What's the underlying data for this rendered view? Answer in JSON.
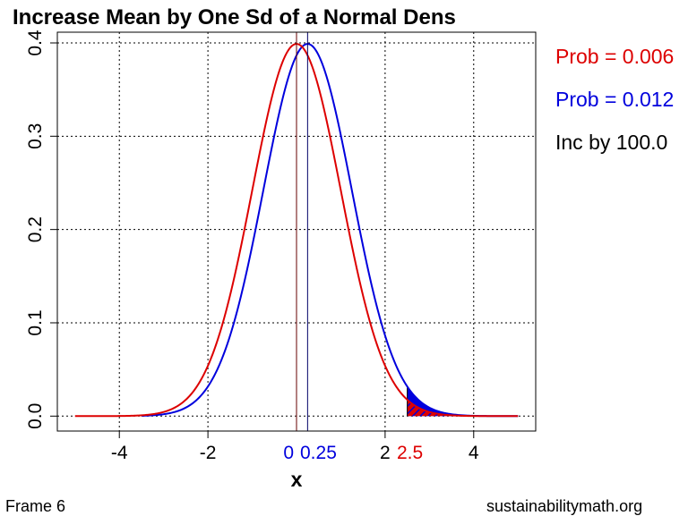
{
  "chart_data": {
    "type": "line",
    "title": "Increase Mean by One Sd of a Normal Dens",
    "xlabel": "x",
    "ylabel": "",
    "xlim": [
      -5.4,
      5.4
    ],
    "ylim": [
      -0.016,
      0.4115
    ],
    "x_ticks": [
      "-4",
      "-2",
      "2",
      "4"
    ],
    "x_tick_values": [
      -4,
      -2,
      2,
      4
    ],
    "y_ticks": [
      "0.0",
      "0.1",
      "0.2",
      "0.3",
      "0.4"
    ],
    "y_tick_values": [
      0,
      0.1,
      0.2,
      0.3,
      0.4
    ],
    "grid": true,
    "series": [
      {
        "distribution": "normal",
        "mean": 0,
        "sd": 1,
        "x_range": [
          -5,
          5
        ],
        "color": "#dd0000",
        "shade_from": 2.5
      },
      {
        "distribution": "normal",
        "mean": 0.25,
        "sd": 1,
        "x_range": [
          -3.5,
          5
        ],
        "color": "#0000dd",
        "shade_from": 2.5
      }
    ],
    "annotations": {
      "mean1_label": "0",
      "mean2_label": "0.25",
      "cutoff_label": "2.5",
      "prob1": "Prob = 0.006",
      "prob2": "Prob = 0.012",
      "increase": "Inc by 100.0"
    }
  },
  "footer": {
    "frame": "Frame 6",
    "site": "sustainabilitymath.org"
  },
  "colors": {
    "red": "#dd0000",
    "blue": "#0000dd"
  }
}
